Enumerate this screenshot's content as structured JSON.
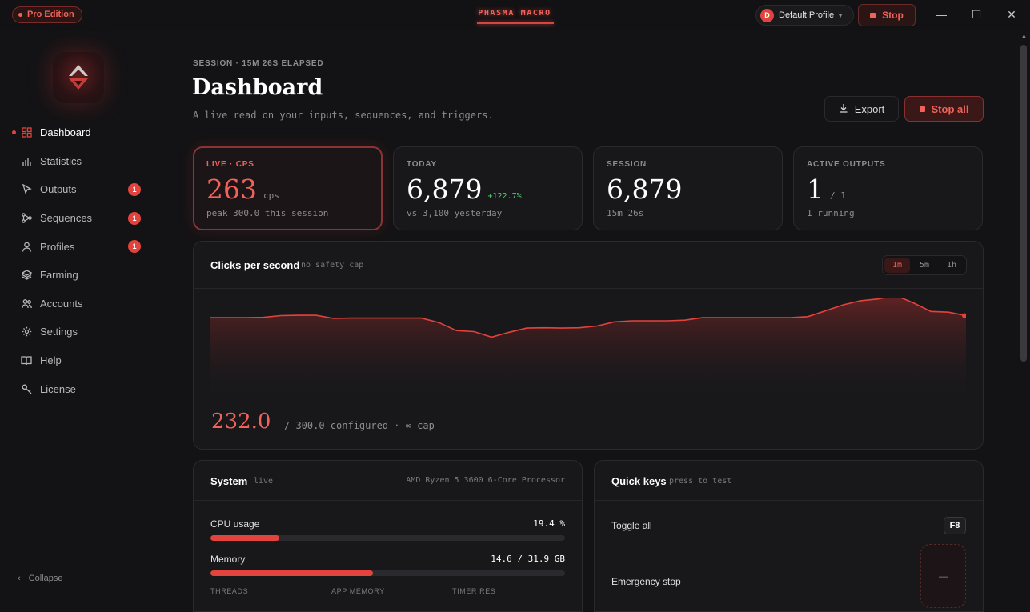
{
  "titlebar": {
    "edition": "Pro Edition",
    "app_title": "PHASMA MACRO",
    "profile": {
      "initial": "D",
      "name": "Default Profile"
    },
    "stop_label": "Stop"
  },
  "sidebar": {
    "items": [
      {
        "label": "Dashboard",
        "icon": "grid-icon",
        "active": true
      },
      {
        "label": "Statistics",
        "icon": "bar-chart-icon"
      },
      {
        "label": "Outputs",
        "icon": "cursor-icon",
        "count": "1"
      },
      {
        "label": "Sequences",
        "icon": "sequence-icon",
        "count": "1"
      },
      {
        "label": "Profiles",
        "icon": "user-icon",
        "count": "1"
      },
      {
        "label": "Farming",
        "icon": "layers-icon"
      },
      {
        "label": "Accounts",
        "icon": "users-icon"
      },
      {
        "label": "Settings",
        "icon": "gear-icon"
      },
      {
        "label": "Help",
        "icon": "book-icon"
      },
      {
        "label": "License",
        "icon": "key-icon"
      }
    ],
    "collapse_label": "Collapse"
  },
  "header": {
    "eyebrow": "SESSION · 15M 26S ELAPSED",
    "title": "Dashboard",
    "subtitle": "A live read on your inputs, sequences, and triggers.",
    "export_label": "Export",
    "stop_all_label": "Stop all"
  },
  "stats": [
    {
      "label": "LIVE · CPS",
      "value": "263",
      "unit": "cps",
      "foot": "peak 300.0 this session"
    },
    {
      "label": "TODAY",
      "value": "6,879",
      "delta": "+122.7%",
      "foot": "vs 3,100 yesterday"
    },
    {
      "label": "SESSION",
      "value": "6,879",
      "foot": "15m 26s"
    },
    {
      "label": "ACTIVE OUTPUTS",
      "value": "1",
      "unit": "/ 1",
      "foot": "1 running"
    }
  ],
  "chart": {
    "title": "Clicks per second",
    "note": "no safety cap",
    "ranges": [
      "1m",
      "5m",
      "1h"
    ],
    "active_range": "1m",
    "current_value": "232.0",
    "current_note": "/ 300.0 configured · ∞ cap"
  },
  "chart_data": {
    "type": "area",
    "title": "Clicks per second",
    "xlabel": "",
    "ylabel": "",
    "ylim": [
      0,
      300
    ],
    "grid": false,
    "series": [
      {
        "values": [
          242,
          242,
          242,
          243,
          248,
          249,
          249,
          240,
          241,
          241,
          241,
          241,
          241,
          228,
          205,
          202,
          186,
          200,
          212,
          213,
          212,
          213,
          218,
          230,
          233,
          233,
          233,
          235,
          242,
          242,
          242,
          242,
          242,
          242,
          245,
          262,
          279,
          291,
          296,
          306,
          285,
          260,
          258,
          248
        ]
      }
    ]
  },
  "system": {
    "title": "System",
    "note": "live",
    "cpu_name": "AMD Ryzen 5 3600 6-Core Processor",
    "cpu_label": "CPU usage",
    "cpu_value": "19.4 %",
    "cpu_fraction": 0.194,
    "mem_label": "Memory",
    "mem_value": "14.6 / 31.9 GB",
    "mem_fraction": 0.458,
    "sub_labels": [
      "THREADS",
      "APP MEMORY",
      "TIMER RES"
    ]
  },
  "quick_keys": {
    "title": "Quick keys",
    "note": "press to test",
    "items": [
      {
        "label": "Toggle all",
        "key": "F8"
      },
      {
        "label": "Emergency stop",
        "key": "—"
      }
    ]
  },
  "colors": {
    "accent": "#e2433d",
    "positive": "#4ad46a",
    "background": "#131315",
    "card": "#18181b"
  }
}
